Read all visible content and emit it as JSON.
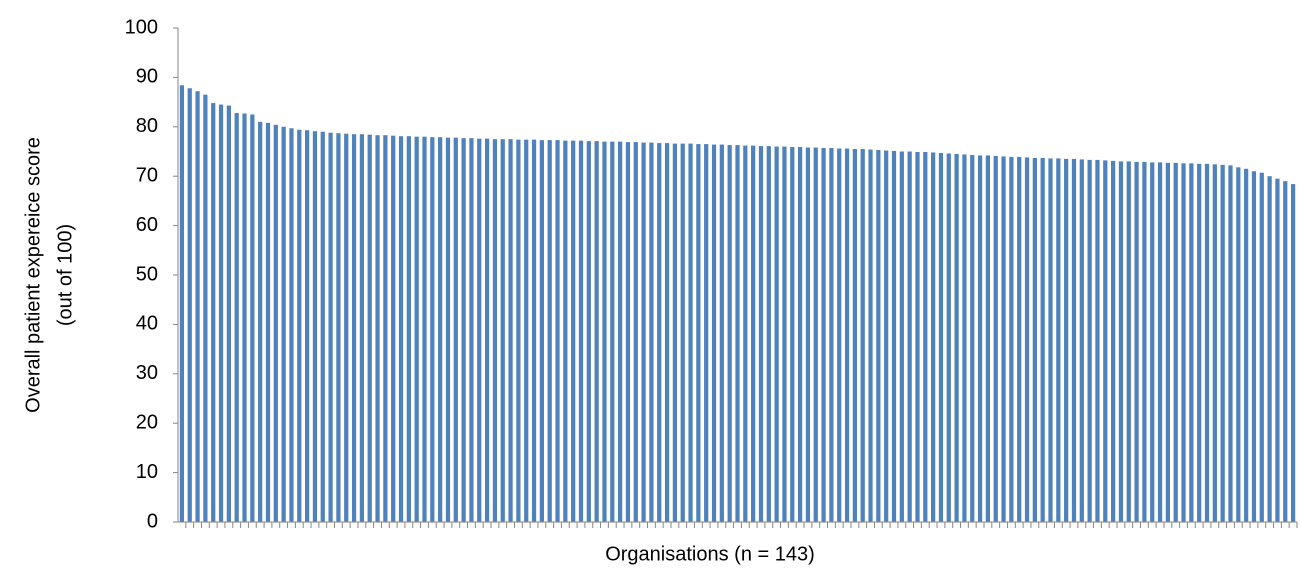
{
  "chart_data": {
    "type": "bar",
    "ylabel": [
      "Overall patient expereice score",
      "(out of 100)"
    ],
    "xlabel": "Organisations (n = 143)",
    "color": "#4f81bd",
    "ylim": [
      0,
      100
    ],
    "yticks": [
      0,
      10,
      20,
      30,
      40,
      50,
      60,
      70,
      80,
      90,
      100
    ],
    "categories": [
      null,
      null,
      null,
      null,
      null,
      null,
      null,
      null,
      null,
      null,
      null,
      null,
      null,
      null,
      null,
      null,
      null,
      null,
      null,
      null,
      null,
      null,
      null,
      null,
      null,
      null,
      null,
      null,
      null,
      null,
      null,
      null,
      null,
      null,
      null,
      null,
      null,
      null,
      null,
      null,
      null,
      null,
      null,
      null,
      null,
      null,
      null,
      null,
      null,
      null,
      null,
      null,
      null,
      null,
      null,
      null,
      null,
      null,
      null,
      null,
      null,
      null,
      null,
      null,
      null,
      null,
      null,
      null,
      null,
      null,
      null,
      null,
      null,
      null,
      null,
      null,
      null,
      null,
      null,
      null,
      null,
      null,
      null,
      null,
      null,
      null,
      null,
      null,
      null,
      null,
      null,
      null,
      null,
      null,
      null,
      null,
      null,
      null,
      null,
      null,
      null,
      null,
      null,
      null,
      null,
      null,
      null,
      null,
      null,
      null,
      null,
      null,
      null,
      null,
      null,
      null,
      null,
      null,
      null,
      null,
      null,
      null,
      null,
      null,
      null,
      null,
      null,
      null,
      null,
      null,
      null,
      null,
      null,
      null,
      null,
      null,
      null,
      null,
      null,
      null,
      null,
      null,
      null
    ],
    "values": [
      88.4,
      87.8,
      87.2,
      86.5,
      84.8,
      84.5,
      84.3,
      82.8,
      82.7,
      82.5,
      81.0,
      80.8,
      80.4,
      80.0,
      79.7,
      79.4,
      79.3,
      79.1,
      79.0,
      78.8,
      78.7,
      78.6,
      78.5,
      78.5,
      78.4,
      78.3,
      78.3,
      78.2,
      78.1,
      78.1,
      78.0,
      78.0,
      77.9,
      77.9,
      77.8,
      77.8,
      77.7,
      77.7,
      77.6,
      77.6,
      77.5,
      77.5,
      77.5,
      77.4,
      77.4,
      77.4,
      77.3,
      77.3,
      77.3,
      77.2,
      77.2,
      77.2,
      77.1,
      77.1,
      77.0,
      77.0,
      77.0,
      76.9,
      76.9,
      76.8,
      76.8,
      76.7,
      76.7,
      76.6,
      76.6,
      76.6,
      76.5,
      76.5,
      76.4,
      76.4,
      76.3,
      76.3,
      76.2,
      76.2,
      76.1,
      76.1,
      76.0,
      76.0,
      75.9,
      75.9,
      75.8,
      75.8,
      75.7,
      75.7,
      75.6,
      75.6,
      75.5,
      75.5,
      75.4,
      75.3,
      75.2,
      75.1,
      75.0,
      75.0,
      74.9,
      74.9,
      74.8,
      74.7,
      74.6,
      74.5,
      74.4,
      74.3,
      74.2,
      74.2,
      74.1,
      74.0,
      73.9,
      73.9,
      73.8,
      73.7,
      73.7,
      73.6,
      73.6,
      73.5,
      73.5,
      73.4,
      73.3,
      73.3,
      73.2,
      73.1,
      73.0,
      73.0,
      72.9,
      72.9,
      72.8,
      72.8,
      72.7,
      72.7,
      72.6,
      72.6,
      72.5,
      72.5,
      72.4,
      72.3,
      72.2,
      71.8,
      71.5,
      71.0,
      70.7,
      70.0,
      69.5,
      69.0,
      68.4
    ]
  }
}
